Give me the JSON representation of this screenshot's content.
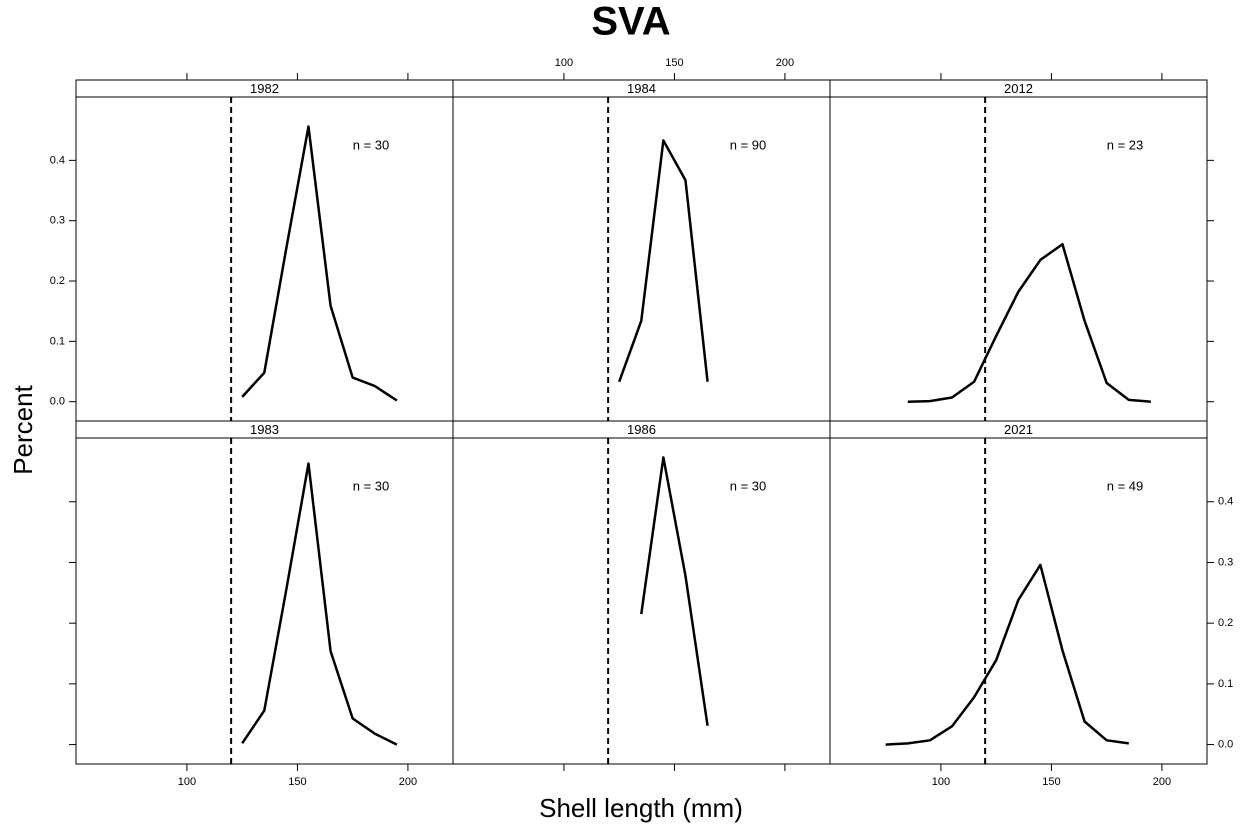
{
  "chart_data": {
    "type": "line",
    "title": "SVA",
    "xlabel": "Shell length (mm)",
    "ylabel": "Percent",
    "xlim": [
      49.8,
      220.4
    ],
    "ylim": [
      -0.032,
      0.505
    ],
    "xticks": [
      100,
      150,
      200
    ],
    "yticks": [
      {
        "value": 0,
        "label": "0.0"
      },
      0.1,
      0.2,
      0.3,
      0.4
    ],
    "reference_x": 120,
    "color": "#000000",
    "panels": [
      {
        "title": "1982",
        "annotation": "n = 30",
        "x": [
          125,
          135,
          145,
          155,
          165,
          175,
          185,
          195
        ],
        "values": [
          0.008,
          0.048,
          0.255,
          0.456,
          0.159,
          0.04,
          0.026,
          0.002
        ]
      },
      {
        "title": "1984",
        "annotation": "n = 90",
        "x": [
          125,
          135,
          145,
          155,
          165
        ],
        "values": [
          0.033,
          0.134,
          0.433,
          0.367,
          0.033
        ]
      },
      {
        "title": "2012",
        "annotation": "n = 23",
        "x": [
          85,
          95,
          105,
          115,
          125,
          135,
          145,
          155,
          165,
          175,
          185,
          195
        ],
        "values": [
          0.0,
          0.001,
          0.007,
          0.033,
          0.109,
          0.182,
          0.235,
          0.261,
          0.134,
          0.031,
          0.003,
          0.0
        ]
      },
      {
        "title": "1983",
        "annotation": "n = 30",
        "x": [
          125,
          135,
          145,
          155,
          165,
          175,
          185,
          195
        ],
        "values": [
          0.002,
          0.056,
          0.256,
          0.463,
          0.154,
          0.043,
          0.018,
          0.0
        ]
      },
      {
        "title": "1986",
        "annotation": "n = 30",
        "x": [
          135,
          145,
          155,
          165
        ],
        "values": [
          0.215,
          0.473,
          0.278,
          0.031
        ]
      },
      {
        "title": "2021",
        "annotation": "n = 49",
        "x": [
          75,
          85,
          95,
          105,
          115,
          125,
          135,
          145,
          155,
          165,
          175,
          185
        ],
        "values": [
          0.0,
          0.002,
          0.007,
          0.03,
          0.078,
          0.139,
          0.238,
          0.296,
          0.155,
          0.038,
          0.007,
          0.002
        ]
      }
    ]
  }
}
